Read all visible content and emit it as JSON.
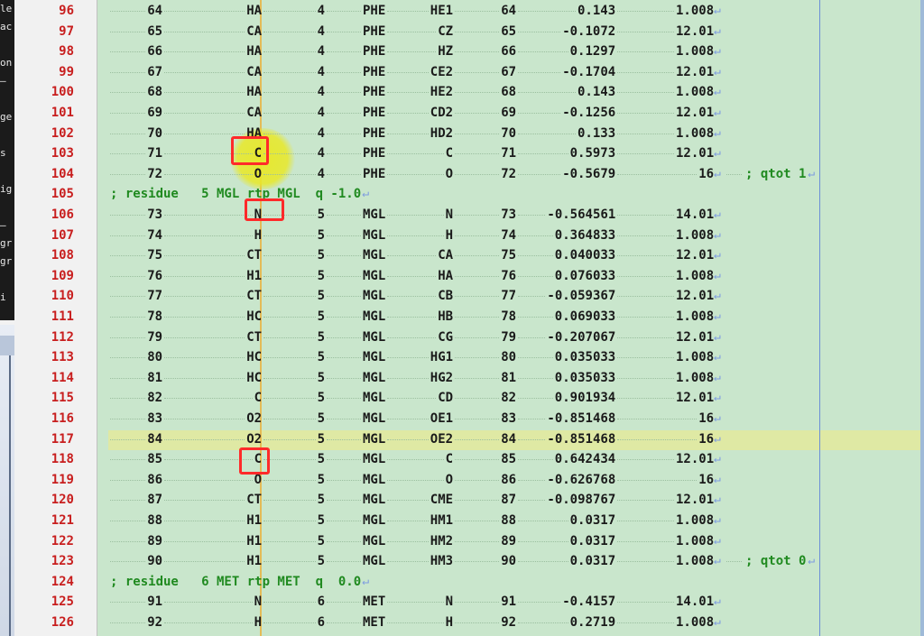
{
  "left_fragments": [
    "le",
    "ac",
    "",
    "on",
    "—",
    "",
    "ge",
    "",
    "s",
    "",
    "ig",
    "",
    "—",
    "gr",
    "gr",
    "",
    "i"
  ],
  "atom_rows": [
    {
      "line": "96",
      "nr": "64",
      "type": "HA",
      "resnr": "4",
      "res": "PHE",
      "atom": "HE1",
      "cgnr": "64",
      "charge": "0.143",
      "mass": "1.008",
      "note": ""
    },
    {
      "line": "97",
      "nr": "65",
      "type": "CA",
      "resnr": "4",
      "res": "PHE",
      "atom": "CZ",
      "cgnr": "65",
      "charge": "-0.1072",
      "mass": "12.01",
      "note": ""
    },
    {
      "line": "98",
      "nr": "66",
      "type": "HA",
      "resnr": "4",
      "res": "PHE",
      "atom": "HZ",
      "cgnr": "66",
      "charge": "0.1297",
      "mass": "1.008",
      "note": ""
    },
    {
      "line": "99",
      "nr": "67",
      "type": "CA",
      "resnr": "4",
      "res": "PHE",
      "atom": "CE2",
      "cgnr": "67",
      "charge": "-0.1704",
      "mass": "12.01",
      "note": ""
    },
    {
      "line": "100",
      "nr": "68",
      "type": "HA",
      "resnr": "4",
      "res": "PHE",
      "atom": "HE2",
      "cgnr": "68",
      "charge": "0.143",
      "mass": "1.008",
      "note": ""
    },
    {
      "line": "101",
      "nr": "69",
      "type": "CA",
      "resnr": "4",
      "res": "PHE",
      "atom": "CD2",
      "cgnr": "69",
      "charge": "-0.1256",
      "mass": "12.01",
      "note": ""
    },
    {
      "line": "102",
      "nr": "70",
      "type": "HA",
      "resnr": "4",
      "res": "PHE",
      "atom": "HD2",
      "cgnr": "70",
      "charge": "0.133",
      "mass": "1.008",
      "note": ""
    },
    {
      "line": "103",
      "nr": "71",
      "type": "C",
      "resnr": "4",
      "res": "PHE",
      "atom": "C",
      "cgnr": "71",
      "charge": "0.5973",
      "mass": "12.01",
      "note": ""
    },
    {
      "line": "104",
      "nr": "72",
      "type": "O",
      "resnr": "4",
      "res": "PHE",
      "atom": "O",
      "cgnr": "72",
      "charge": "-0.5679",
      "mass": "16",
      "note": "; qtot 1"
    },
    {
      "line": "105",
      "comment": "; residue   5 MGL rtp MGL  q -1.0"
    },
    {
      "line": "106",
      "nr": "73",
      "type": "N",
      "resnr": "5",
      "res": "MGL",
      "atom": "N",
      "cgnr": "73",
      "charge": "-0.564561",
      "mass": "14.01",
      "note": ""
    },
    {
      "line": "107",
      "nr": "74",
      "type": "H",
      "resnr": "5",
      "res": "MGL",
      "atom": "H",
      "cgnr": "74",
      "charge": "0.364833",
      "mass": "1.008",
      "note": ""
    },
    {
      "line": "108",
      "nr": "75",
      "type": "CT",
      "resnr": "5",
      "res": "MGL",
      "atom": "CA",
      "cgnr": "75",
      "charge": "0.040033",
      "mass": "12.01",
      "note": ""
    },
    {
      "line": "109",
      "nr": "76",
      "type": "H1",
      "resnr": "5",
      "res": "MGL",
      "atom": "HA",
      "cgnr": "76",
      "charge": "0.076033",
      "mass": "1.008",
      "note": ""
    },
    {
      "line": "110",
      "nr": "77",
      "type": "CT",
      "resnr": "5",
      "res": "MGL",
      "atom": "CB",
      "cgnr": "77",
      "charge": "-0.059367",
      "mass": "12.01",
      "note": ""
    },
    {
      "line": "111",
      "nr": "78",
      "type": "HC",
      "resnr": "5",
      "res": "MGL",
      "atom": "HB",
      "cgnr": "78",
      "charge": "0.069033",
      "mass": "1.008",
      "note": ""
    },
    {
      "line": "112",
      "nr": "79",
      "type": "CT",
      "resnr": "5",
      "res": "MGL",
      "atom": "CG",
      "cgnr": "79",
      "charge": "-0.207067",
      "mass": "12.01",
      "note": ""
    },
    {
      "line": "113",
      "nr": "80",
      "type": "HC",
      "resnr": "5",
      "res": "MGL",
      "atom": "HG1",
      "cgnr": "80",
      "charge": "0.035033",
      "mass": "1.008",
      "note": ""
    },
    {
      "line": "114",
      "nr": "81",
      "type": "HC",
      "resnr": "5",
      "res": "MGL",
      "atom": "HG2",
      "cgnr": "81",
      "charge": "0.035033",
      "mass": "1.008",
      "note": ""
    },
    {
      "line": "115",
      "nr": "82",
      "type": "C",
      "resnr": "5",
      "res": "MGL",
      "atom": "CD",
      "cgnr": "82",
      "charge": "0.901934",
      "mass": "12.01",
      "note": ""
    },
    {
      "line": "116",
      "nr": "83",
      "type": "O2",
      "resnr": "5",
      "res": "MGL",
      "atom": "OE1",
      "cgnr": "83",
      "charge": "-0.851468",
      "mass": "16",
      "note": ""
    },
    {
      "line": "117",
      "nr": "84",
      "type": "O2",
      "resnr": "5",
      "res": "MGL",
      "atom": "OE2",
      "cgnr": "84",
      "charge": "-0.851468",
      "mass": "16",
      "note": ""
    },
    {
      "line": "118",
      "nr": "85",
      "type": "C",
      "resnr": "5",
      "res": "MGL",
      "atom": "C",
      "cgnr": "85",
      "charge": "0.642434",
      "mass": "12.01",
      "note": ""
    },
    {
      "line": "119",
      "nr": "86",
      "type": "O",
      "resnr": "5",
      "res": "MGL",
      "atom": "O",
      "cgnr": "86",
      "charge": "-0.626768",
      "mass": "16",
      "note": ""
    },
    {
      "line": "120",
      "nr": "87",
      "type": "CT",
      "resnr": "5",
      "res": "MGL",
      "atom": "CME",
      "cgnr": "87",
      "charge": "-0.098767",
      "mass": "12.01",
      "note": ""
    },
    {
      "line": "121",
      "nr": "88",
      "type": "H1",
      "resnr": "5",
      "res": "MGL",
      "atom": "HM1",
      "cgnr": "88",
      "charge": "0.0317",
      "mass": "1.008",
      "note": ""
    },
    {
      "line": "122",
      "nr": "89",
      "type": "H1",
      "resnr": "5",
      "res": "MGL",
      "atom": "HM2",
      "cgnr": "89",
      "charge": "0.0317",
      "mass": "1.008",
      "note": ""
    },
    {
      "line": "123",
      "nr": "90",
      "type": "H1",
      "resnr": "5",
      "res": "MGL",
      "atom": "HM3",
      "cgnr": "90",
      "charge": "0.0317",
      "mass": "1.008",
      "note": "; qtot 0"
    },
    {
      "line": "124",
      "comment": "; residue   6 MET rtp MET  q  0.0"
    },
    {
      "line": "125",
      "nr": "91",
      "type": "N",
      "resnr": "6",
      "res": "MET",
      "atom": "N",
      "cgnr": "91",
      "charge": "-0.4157",
      "mass": "14.01",
      "note": ""
    },
    {
      "line": "126",
      "nr": "92",
      "type": "H",
      "resnr": "6",
      "res": "MET",
      "atom": "H",
      "cgnr": "92",
      "charge": "0.2719",
      "mass": "1.008",
      "note": ""
    }
  ],
  "current_line": "117",
  "annotations": [
    {
      "line": "103",
      "label": "red box around C"
    },
    {
      "line": "106",
      "label": "red box around N"
    },
    {
      "line": "118",
      "label": "red box around C"
    }
  ],
  "colors": {
    "editor_bg": "#c9e6cc",
    "line_number": "#c81e1e",
    "comment": "#208a20",
    "current_line_bg": "#dfe9a4",
    "annotation_box": "#ff2a2a",
    "cursor_column": "#e7b64a"
  }
}
